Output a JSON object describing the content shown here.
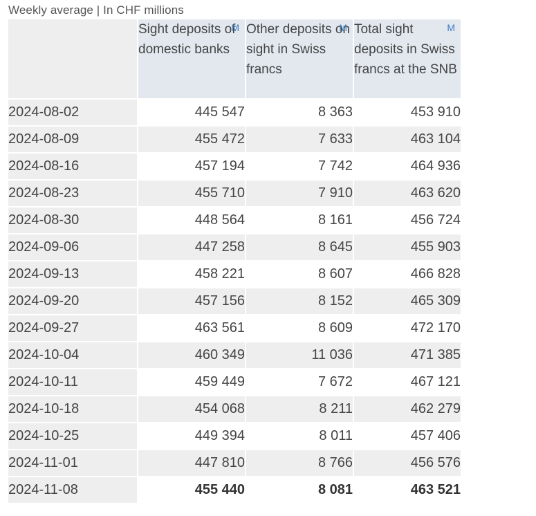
{
  "caption": "Weekly average | In CHF millions",
  "columns": [
    {
      "label": "Sight deposits of domestic banks",
      "flag": "M"
    },
    {
      "label": "Other deposits on sight in Swiss francs",
      "flag": "M"
    },
    {
      "label": "Total sight deposits in Swiss francs at the SNB",
      "flag": "M"
    }
  ],
  "rows": [
    {
      "date": "2024-08-02",
      "v1": "445 547",
      "v2": "8 363",
      "v3": "453 910"
    },
    {
      "date": "2024-08-09",
      "v1": "455 472",
      "v2": "7 633",
      "v3": "463 104"
    },
    {
      "date": "2024-08-16",
      "v1": "457 194",
      "v2": "7 742",
      "v3": "464 936"
    },
    {
      "date": "2024-08-23",
      "v1": "455 710",
      "v2": "7 910",
      "v3": "463 620"
    },
    {
      "date": "2024-08-30",
      "v1": "448 564",
      "v2": "8 161",
      "v3": "456 724"
    },
    {
      "date": "2024-09-06",
      "v1": "447 258",
      "v2": "8 645",
      "v3": "455 903"
    },
    {
      "date": "2024-09-13",
      "v1": "458 221",
      "v2": "8 607",
      "v3": "466 828"
    },
    {
      "date": "2024-09-20",
      "v1": "457 156",
      "v2": "8 152",
      "v3": "465 309"
    },
    {
      "date": "2024-09-27",
      "v1": "463 561",
      "v2": "8 609",
      "v3": "472 170"
    },
    {
      "date": "2024-10-04",
      "v1": "460 349",
      "v2": "11 036",
      "v3": "471 385"
    },
    {
      "date": "2024-10-11",
      "v1": "459 449",
      "v2": "7 672",
      "v3": "467 121"
    },
    {
      "date": "2024-10-18",
      "v1": "454 068",
      "v2": "8 211",
      "v3": "462 279"
    },
    {
      "date": "2024-10-25",
      "v1": "449 394",
      "v2": "8 011",
      "v3": "457 406"
    },
    {
      "date": "2024-11-01",
      "v1": "447 810",
      "v2": "8 766",
      "v3": "456 576"
    },
    {
      "date": "2024-11-08",
      "v1": "455 440",
      "v2": "8 081",
      "v3": "463 521"
    }
  ],
  "colors": {
    "header_bg": "#e3e8ef",
    "row_alt_bg": "#eeeeee",
    "flag": "#3b7dc4"
  }
}
